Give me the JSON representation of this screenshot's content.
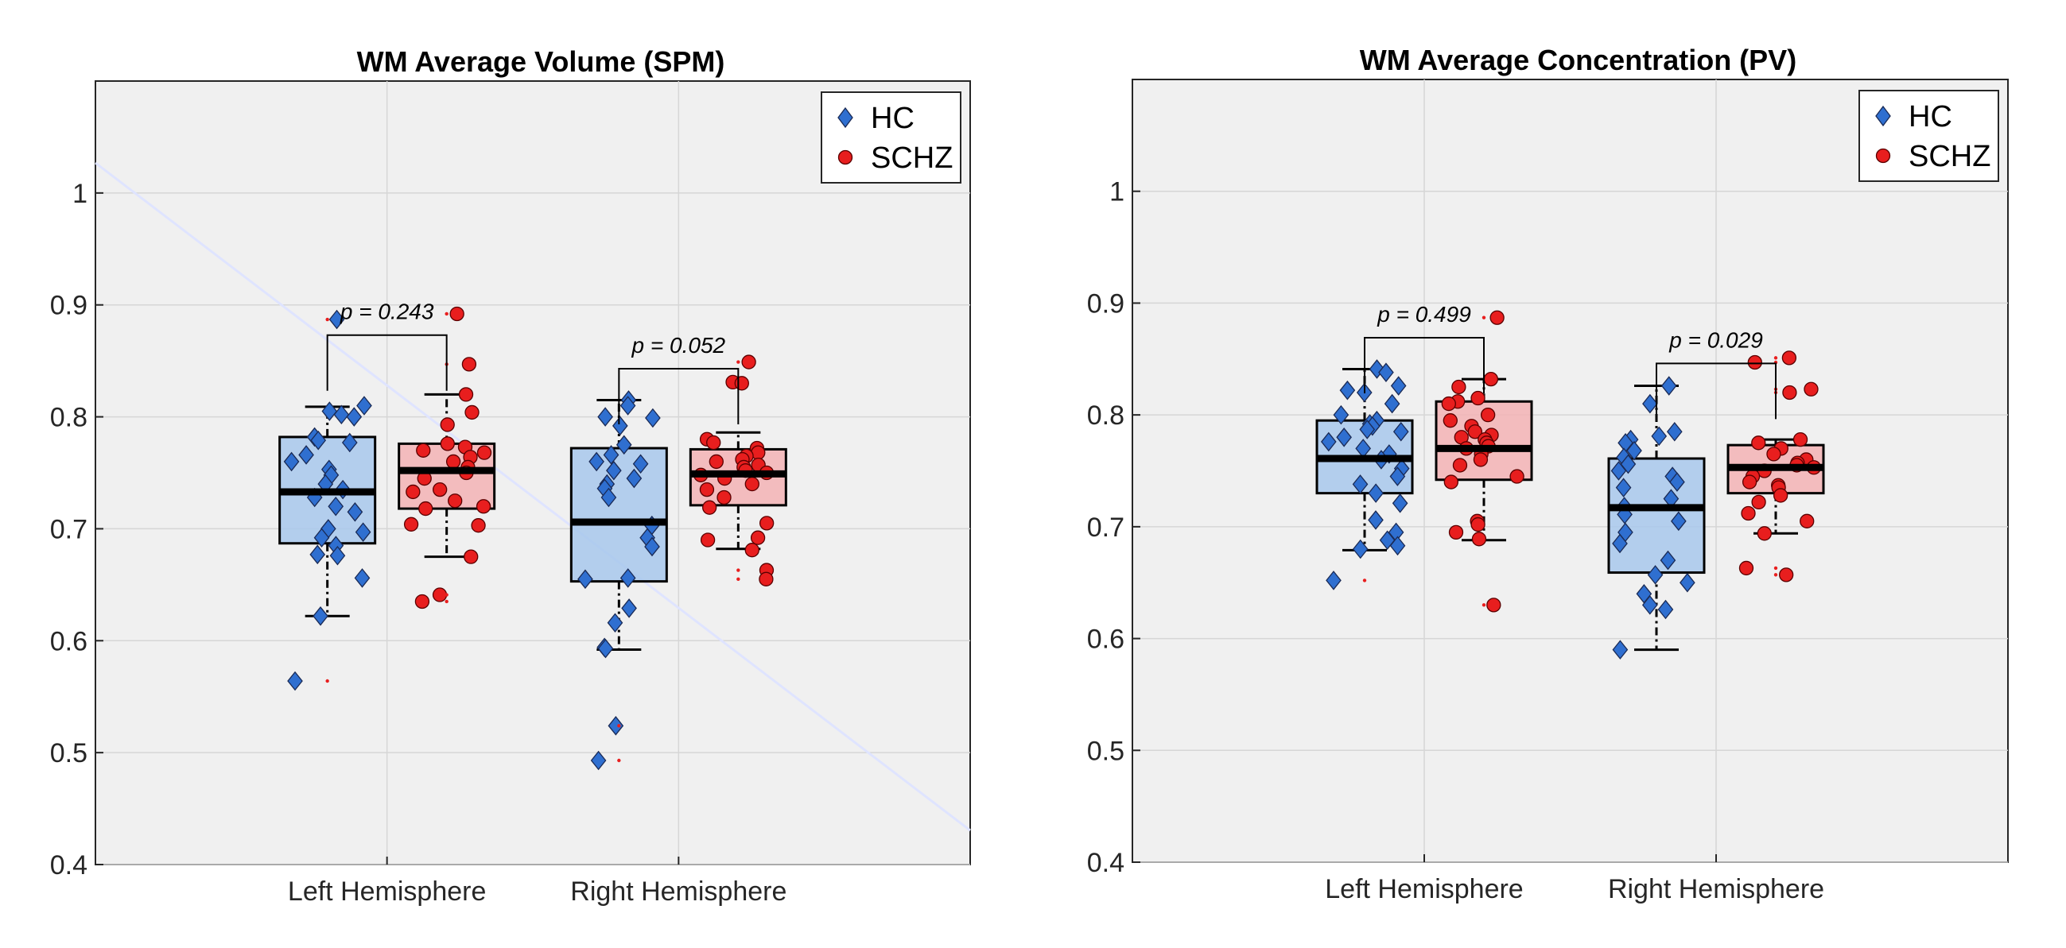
{
  "chart_data": [
    {
      "type": "boxplot",
      "title": "WM Average Volume (SPM)",
      "xlabel": "",
      "ylabel": "",
      "ylim": [
        0.4,
        1.1
      ],
      "yticks": [
        0.4,
        0.5,
        0.6,
        0.7,
        0.8,
        0.9,
        1
      ],
      "ytick_labels": [
        "0.4",
        "0.5",
        "0.6",
        "0.7",
        "0.8",
        "0.9",
        "1"
      ],
      "categories": [
        "Left Hemisphere",
        "Right Hemisphere"
      ],
      "grid": true,
      "legend": {
        "placement": "top-right",
        "entries": [
          "HC",
          "SCHZ"
        ]
      },
      "series": [
        {
          "name": "HC",
          "color": "#2f6fd0",
          "box_fill": "#a8c8ec",
          "marker": "diamond",
          "boxes": [
            {
              "median": 0.733,
              "q1": 0.687,
              "q3": 0.782,
              "whisker_low": 0.622,
              "whisker_high": 0.809
            },
            {
              "median": 0.706,
              "q1": 0.653,
              "q3": 0.772,
              "whisker_low": 0.592,
              "whisker_high": 0.815
            }
          ],
          "points": [
            [
              0.887,
              0.81,
              0.805,
              0.802,
              0.8,
              0.782,
              0.779,
              0.777,
              0.766,
              0.76,
              0.753,
              0.748,
              0.74,
              0.735,
              0.728,
              0.72,
              0.715,
              0.7,
              0.697,
              0.692,
              0.685,
              0.677,
              0.676,
              0.656,
              0.622,
              0.564
            ],
            [
              0.815,
              0.81,
              0.8,
              0.799,
              0.792,
              0.775,
              0.766,
              0.76,
              0.758,
              0.752,
              0.745,
              0.74,
              0.736,
              0.728,
              0.703,
              0.692,
              0.684,
              0.656,
              0.655,
              0.629,
              0.616,
              0.594,
              0.593,
              0.524,
              0.493
            ]
          ]
        },
        {
          "name": "SCHZ",
          "color": "#e81e1e",
          "box_fill": "#f3b3b5",
          "marker": "circle",
          "boxes": [
            {
              "median": 0.752,
              "q1": 0.718,
              "q3": 0.776,
              "whisker_low": 0.675,
              "whisker_high": 0.82
            },
            {
              "median": 0.749,
              "q1": 0.721,
              "q3": 0.771,
              "whisker_low": 0.682,
              "whisker_high": 0.786
            }
          ],
          "points": [
            [
              0.892,
              0.847,
              0.82,
              0.804,
              0.793,
              0.776,
              0.773,
              0.77,
              0.768,
              0.764,
              0.76,
              0.755,
              0.75,
              0.745,
              0.735,
              0.733,
              0.725,
              0.72,
              0.718,
              0.703,
              0.704,
              0.675,
              0.641,
              0.635
            ],
            [
              0.849,
              0.831,
              0.83,
              0.78,
              0.777,
              0.772,
              0.768,
              0.765,
              0.762,
              0.76,
              0.757,
              0.755,
              0.752,
              0.75,
              0.748,
              0.745,
              0.74,
              0.735,
              0.728,
              0.719,
              0.705,
              0.692,
              0.69,
              0.681,
              0.663,
              0.655
            ]
          ]
        }
      ],
      "outliers": [
        [
          0.887,
          0.564
        ],
        [
          0.524,
          0.493
        ],
        [
          0.892,
          0.847,
          0.641,
          0.635
        ],
        [
          0.849,
          0.663,
          0.655
        ]
      ],
      "annotations": [
        {
          "text": "p = 0.243",
          "category": "Left Hemisphere",
          "level": 0.873
        },
        {
          "text": "p = 0.052",
          "category": "Right Hemisphere",
          "level": 0.843
        }
      ]
    },
    {
      "type": "boxplot",
      "title": "WM Average Concentration (PV)",
      "xlabel": "",
      "ylabel": "",
      "ylim": [
        0.4,
        1.1
      ],
      "yticks": [
        0.4,
        0.5,
        0.6,
        0.7,
        0.8,
        0.9,
        1
      ],
      "ytick_labels": [
        "0.4",
        "0.5",
        "0.6",
        "0.7",
        "0.8",
        "0.9",
        "1"
      ],
      "categories": [
        "Left Hemisphere",
        "Right Hemisphere"
      ],
      "grid": true,
      "legend": {
        "placement": "top-right",
        "entries": [
          "HC",
          "SCHZ"
        ]
      },
      "series": [
        {
          "name": "HC",
          "color": "#2f6fd0",
          "box_fill": "#a8c8ec",
          "marker": "diamond",
          "boxes": [
            {
              "median": 0.761,
              "q1": 0.73,
              "q3": 0.795,
              "whisker_low": 0.679,
              "whisker_high": 0.841
            },
            {
              "median": 0.717,
              "q1": 0.659,
              "q3": 0.761,
              "whisker_low": 0.59,
              "whisker_high": 0.826
            }
          ],
          "points": [
            [
              0.841,
              0.838,
              0.826,
              0.822,
              0.82,
              0.81,
              0.8,
              0.795,
              0.792,
              0.79,
              0.787,
              0.785,
              0.78,
              0.776,
              0.77,
              0.765,
              0.76,
              0.752,
              0.745,
              0.738,
              0.73,
              0.721,
              0.706,
              0.695,
              0.688,
              0.683,
              0.68,
              0.652
            ],
            [
              0.826,
              0.81,
              0.785,
              0.781,
              0.778,
              0.775,
              0.768,
              0.762,
              0.756,
              0.75,
              0.745,
              0.74,
              0.735,
              0.725,
              0.718,
              0.711,
              0.705,
              0.695,
              0.685,
              0.67,
              0.657,
              0.65,
              0.64,
              0.63,
              0.626,
              0.59
            ]
          ]
        },
        {
          "name": "SCHZ",
          "color": "#e81e1e",
          "box_fill": "#f3b3b5",
          "marker": "circle",
          "boxes": [
            {
              "median": 0.77,
              "q1": 0.742,
              "q3": 0.812,
              "whisker_low": 0.688,
              "whisker_high": 0.832
            },
            {
              "median": 0.753,
              "q1": 0.73,
              "q3": 0.773,
              "whisker_low": 0.694,
              "whisker_high": 0.778
            }
          ],
          "points": [
            [
              0.887,
              0.832,
              0.825,
              0.815,
              0.812,
              0.81,
              0.8,
              0.795,
              0.79,
              0.785,
              0.782,
              0.78,
              0.778,
              0.775,
              0.772,
              0.77,
              0.765,
              0.76,
              0.755,
              0.745,
              0.74,
              0.705,
              0.702,
              0.695,
              0.689,
              0.63
            ],
            [
              0.851,
              0.847,
              0.823,
              0.82,
              0.778,
              0.775,
              0.77,
              0.765,
              0.76,
              0.757,
              0.755,
              0.753,
              0.75,
              0.745,
              0.74,
              0.737,
              0.735,
              0.728,
              0.722,
              0.712,
              0.705,
              0.694,
              0.663,
              0.657
            ]
          ]
        }
      ],
      "outliers": [
        [
          0.652
        ],
        [],
        [
          0.887,
          0.63
        ],
        [
          0.851,
          0.847,
          0.823,
          0.82,
          0.663,
          0.657
        ]
      ],
      "annotations": [
        {
          "text": "p = 0.499",
          "category": "Left Hemisphere",
          "level": 0.869
        },
        {
          "text": "p = 0.029",
          "category": "Right Hemisphere",
          "level": 0.846
        }
      ]
    }
  ]
}
